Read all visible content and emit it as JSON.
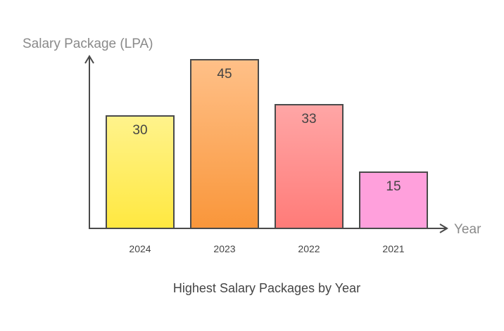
{
  "chart_data": {
    "type": "bar",
    "title": "Highest Salary Packages by Year",
    "xlabel": "Year",
    "ylabel": "Salary Package (LPA)",
    "categories": [
      "2024",
      "2023",
      "2022",
      "2021"
    ],
    "values": [
      30,
      45,
      33,
      15
    ],
    "ylim": [
      0,
      45
    ],
    "grid": false,
    "data_labels": true,
    "colors": [
      {
        "top": "#fff38c",
        "bottom": "#ffe840"
      },
      {
        "top": "#ffc088",
        "bottom": "#f9963a"
      },
      {
        "top": "#ffa6a6",
        "bottom": "#ff7b78"
      },
      {
        "top": "#ffa0dc",
        "bottom": "#ffa0dc"
      }
    ],
    "axis_color": "#4a4a4a"
  }
}
